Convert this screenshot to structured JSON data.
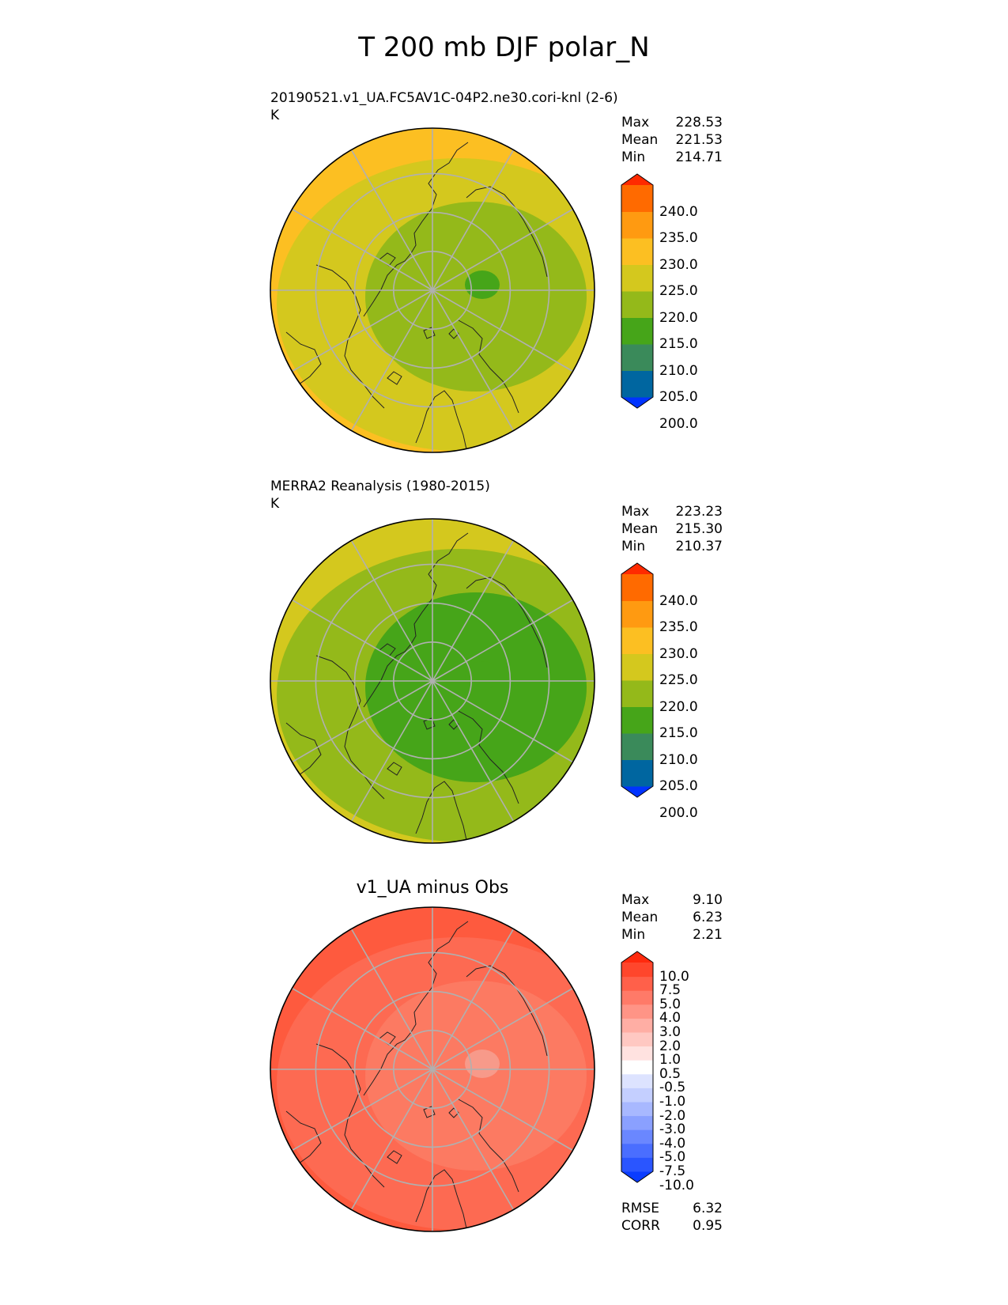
{
  "figure": {
    "title": "T 200 mb DJF polar_N"
  },
  "panels": [
    {
      "title": "20190521.v1_UA.FC5AV1C-04P2.ne30.cori-knl (2-6)",
      "units": "K",
      "stats": [
        {
          "label": "Max",
          "value": "228.53"
        },
        {
          "label": "Mean",
          "value": "221.53"
        },
        {
          "label": "Min",
          "value": "214.71"
        }
      ],
      "colorbar": {
        "labels": [
          "240.0",
          "235.0",
          "230.0",
          "225.0",
          "220.0",
          "215.0",
          "210.0",
          "205.0",
          "200.0"
        ],
        "colors": [
          "#0033ff",
          "#0066a0",
          "#3a8a5a",
          "#46a519",
          "#94b91a",
          "#d4c81e",
          "#fcbf22",
          "#ff9a11",
          "#ff6a00",
          "#ff2a00"
        ]
      },
      "fields": {
        "pole": "#46a519",
        "inner": "#94b91a",
        "mid": "#d4c81e",
        "outer": "#fcbf22"
      }
    },
    {
      "title": "MERRA2 Reanalysis (1980-2015)",
      "units": "K",
      "stats": [
        {
          "label": "Max",
          "value": "223.23"
        },
        {
          "label": "Mean",
          "value": "215.30"
        },
        {
          "label": "Min",
          "value": "210.37"
        }
      ],
      "colorbar": {
        "labels": [
          "240.0",
          "235.0",
          "230.0",
          "225.0",
          "220.0",
          "215.0",
          "210.0",
          "205.0",
          "200.0"
        ],
        "colors": [
          "#0033ff",
          "#0066a0",
          "#3a8a5a",
          "#46a519",
          "#94b91a",
          "#d4c81e",
          "#fcbf22",
          "#ff9a11",
          "#ff6a00",
          "#ff2a00"
        ]
      },
      "fields": {
        "pole": "#46a519",
        "inner": "#46a519",
        "mid": "#94b91a",
        "outer": "#d4c81e"
      }
    },
    {
      "title": "v1_UA minus Obs",
      "stats": [
        {
          "label": "Max",
          "value": "9.10"
        },
        {
          "label": "Mean",
          "value": "6.23"
        },
        {
          "label": "Min",
          "value": "2.21"
        }
      ],
      "metrics": [
        {
          "label": "RMSE",
          "value": "6.32"
        },
        {
          "label": "CORR",
          "value": "0.95"
        }
      ],
      "colorbar": {
        "labels": [
          "10.0",
          "7.5",
          "5.0",
          "4.0",
          "3.0",
          "2.0",
          "1.0",
          "0.5",
          "-0.5",
          "-1.0",
          "-2.0",
          "-3.0",
          "-4.0",
          "-5.0",
          "-7.5",
          "-10.0"
        ],
        "colors": [
          "#0a3cff",
          "#2a55ff",
          "#4a6eff",
          "#6a87ff",
          "#8aa0ff",
          "#a8b8ff",
          "#c4cfff",
          "#dde3ff",
          "#ffffff",
          "#ffe2e0",
          "#ffc8c2",
          "#ffaea4",
          "#ff9486",
          "#ff7a68",
          "#ff604a",
          "#ff462c",
          "#ff2a0e"
        ]
      },
      "fields": {
        "pole": "#f79a8a",
        "inner": "#fc7a62",
        "mid": "#fd6a52",
        "outer": "#fe5a3e"
      }
    }
  ]
}
